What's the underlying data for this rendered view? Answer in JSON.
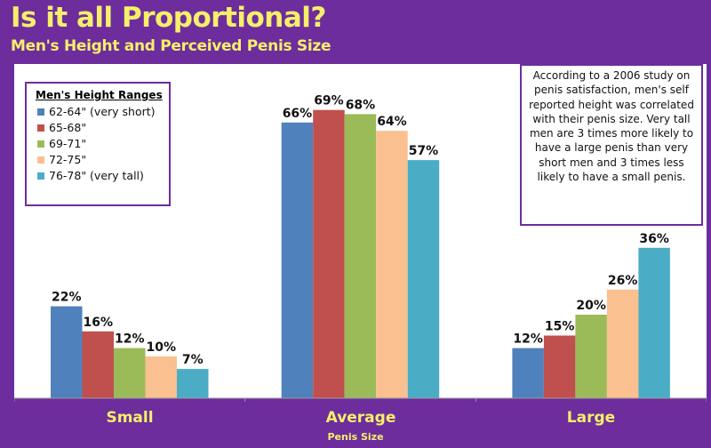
{
  "chart_data": {
    "type": "bar",
    "title": "Is it all Proportional?",
    "subtitle": "Men's Height and Perceived Penis Size",
    "xlabel": "Penis Size",
    "ylabel": "",
    "ylim": [
      0,
      80
    ],
    "grid": false,
    "categories": [
      "Small",
      "Average",
      "Large"
    ],
    "legend_title": "Men's Height Ranges",
    "legend_placement": "top-left",
    "series": [
      {
        "name": "62-64\" (very short)",
        "color": "#4f81bd",
        "values": [
          22,
          66,
          12
        ]
      },
      {
        "name": "65-68\"",
        "color": "#c0504d",
        "values": [
          16,
          69,
          15
        ]
      },
      {
        "name": "69-71\"",
        "color": "#9bbb59",
        "values": [
          12,
          68,
          20
        ]
      },
      {
        "name": "72-75\"",
        "color": "#fac090",
        "values": [
          10,
          64,
          26
        ]
      },
      {
        "name": "76-78\" (very tall)",
        "color": "#4bacc6",
        "values": [
          7,
          57,
          36
        ]
      }
    ],
    "annotation": "According to a 2006 study on penis satisfaction, men's self reported  height was correlated with their penis size. Very tall men are 3 times more likely to have a large penis than very short men and 3 times less likely to have a small penis."
  }
}
